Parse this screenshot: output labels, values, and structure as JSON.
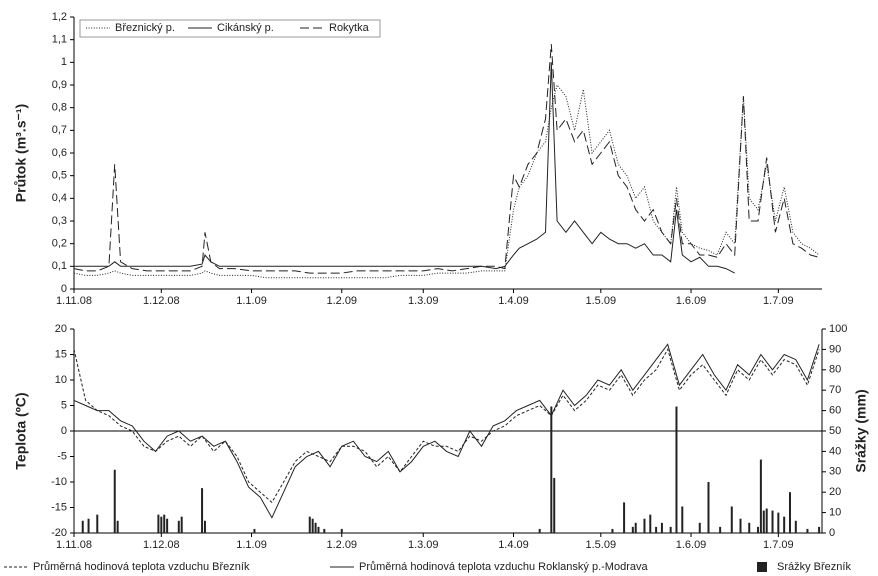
{
  "chart_data": [
    {
      "type": "line",
      "y_label": "Průtok (m³.s⁻¹)",
      "legend": "top-left",
      "xlim": [
        0,
        257
      ],
      "xticks": [
        {
          "value": 0,
          "label": "1.11.08"
        },
        {
          "value": 30,
          "label": "1.12.08"
        },
        {
          "value": 61,
          "label": "1.1.09"
        },
        {
          "value": 92,
          "label": "1.2.09"
        },
        {
          "value": 120,
          "label": "1.3.09"
        },
        {
          "value": 151,
          "label": "1.4.09"
        },
        {
          "value": 181,
          "label": "1.5.09"
        },
        {
          "value": 212,
          "label": "1.6.09"
        },
        {
          "value": 242,
          "label": "1.7.09"
        }
      ],
      "ylim": [
        0,
        1.2
      ],
      "yticks": [
        0,
        {
          "value": 0.1,
          "label": "0,1"
        },
        {
          "value": 0.2,
          "label": "0,2"
        },
        {
          "value": 0.3,
          "label": "0,3"
        },
        {
          "value": 0.4,
          "label": "0,4"
        },
        {
          "value": 0.5,
          "label": "0,5"
        },
        {
          "value": 0.6,
          "label": "0,6"
        },
        {
          "value": 0.7,
          "label": "0,7"
        },
        {
          "value": 0.8,
          "label": "0,8"
        },
        {
          "value": 0.9,
          "label": "0,9"
        },
        1,
        {
          "value": 1.1,
          "label": "1,1"
        },
        {
          "value": 1.2,
          "label": "1,2"
        }
      ],
      "x": [
        0,
        4,
        8,
        12,
        14,
        16,
        20,
        25,
        30,
        35,
        40,
        44,
        45,
        47,
        50,
        55,
        61,
        66,
        71,
        76,
        81,
        86,
        92,
        97,
        102,
        107,
        112,
        117,
        120,
        125,
        130,
        135,
        140,
        145,
        148,
        151,
        153,
        156,
        159,
        162,
        164,
        166,
        169,
        172,
        175,
        178,
        181,
        184,
        187,
        190,
        193,
        196,
        199,
        202,
        205,
        207,
        209,
        212,
        215,
        218,
        221,
        224,
        227,
        230,
        232,
        235,
        238,
        241,
        244,
        247,
        250,
        253,
        256
      ],
      "series": [
        {
          "name": "Březnický p.",
          "color": "#222222",
          "dash": "dotted",
          "values": [
            0.07,
            0.06,
            0.06,
            0.07,
            0.08,
            0.07,
            0.06,
            0.06,
            0.06,
            0.06,
            0.06,
            0.07,
            0.08,
            0.07,
            0.06,
            0.06,
            0.06,
            0.05,
            0.05,
            0.05,
            0.05,
            0.05,
            0.05,
            0.05,
            0.05,
            0.05,
            0.06,
            0.06,
            0.06,
            0.07,
            0.07,
            0.07,
            0.08,
            0.08,
            0.08,
            0.35,
            0.45,
            0.5,
            0.6,
            0.65,
            0.8,
            0.9,
            0.85,
            0.7,
            0.88,
            0.6,
            0.65,
            0.7,
            0.55,
            0.5,
            0.4,
            0.45,
            0.3,
            0.25,
            0.2,
            0.45,
            0.25,
            0.2,
            0.18,
            0.17,
            0.15,
            0.25,
            0.2,
            0.85,
            0.4,
            0.35,
            0.55,
            0.3,
            0.45,
            0.25,
            0.2,
            0.18,
            0.15
          ]
        },
        {
          "name": "Cikánský p.",
          "color": "#222222",
          "dash": "solid",
          "values": [
            0.1,
            0.1,
            0.1,
            0.1,
            0.12,
            0.1,
            0.1,
            0.1,
            0.1,
            0.1,
            0.1,
            0.11,
            0.15,
            0.12,
            0.1,
            0.1,
            0.1,
            0.1,
            0.1,
            0.1,
            0.1,
            0.1,
            0.1,
            0.1,
            0.1,
            0.1,
            0.1,
            0.1,
            0.1,
            0.1,
            0.1,
            0.1,
            0.1,
            0.09,
            0.1,
            0.15,
            0.18,
            0.2,
            0.22,
            0.25,
            1.0,
            0.3,
            0.25,
            0.3,
            0.25,
            0.2,
            0.25,
            0.22,
            0.2,
            0.2,
            0.18,
            0.2,
            0.15,
            0.15,
            0.12,
            0.35,
            0.15,
            0.12,
            0.14,
            0.1,
            0.1,
            0.09,
            0.07,
            null,
            null,
            null,
            null,
            null,
            null,
            null,
            null,
            null,
            null
          ]
        },
        {
          "name": "Rokytka",
          "color": "#222222",
          "dash": "dashed",
          "values": [
            0.09,
            0.08,
            0.08,
            0.1,
            0.55,
            0.12,
            0.09,
            0.08,
            0.08,
            0.08,
            0.08,
            0.1,
            0.25,
            0.12,
            0.09,
            0.09,
            0.08,
            0.08,
            0.08,
            0.08,
            0.07,
            0.07,
            0.07,
            0.08,
            0.08,
            0.08,
            0.08,
            0.08,
            0.08,
            0.09,
            0.08,
            0.09,
            0.1,
            0.1,
            0.09,
            0.5,
            0.45,
            0.55,
            0.6,
            0.75,
            1.08,
            0.7,
            0.75,
            0.65,
            0.7,
            0.55,
            0.6,
            0.65,
            0.5,
            0.45,
            0.35,
            0.3,
            0.35,
            0.25,
            0.2,
            0.4,
            0.2,
            0.2,
            0.15,
            0.15,
            0.14,
            0.2,
            0.15,
            0.85,
            0.3,
            0.3,
            0.58,
            0.25,
            0.4,
            0.2,
            0.18,
            0.15,
            0.14
          ]
        }
      ]
    },
    {
      "type": "line",
      "y_label": "Teplota (ºC)",
      "y2_label": "Srážky (mm)",
      "legend": "bottom",
      "zero_line": true,
      "xlim": [
        0,
        257
      ],
      "xticks": [
        {
          "value": 0,
          "label": "1.11.08"
        },
        {
          "value": 30,
          "label": "1.12.08"
        },
        {
          "value": 61,
          "label": "1.1.09"
        },
        {
          "value": 92,
          "label": "1.2.09"
        },
        {
          "value": 120,
          "label": "1.3.09"
        },
        {
          "value": 151,
          "label": "1.4.09"
        },
        {
          "value": 181,
          "label": "1.5.09"
        },
        {
          "value": 212,
          "label": "1.6.09"
        },
        {
          "value": 242,
          "label": "1.7.09"
        }
      ],
      "ylim": [
        -20,
        20
      ],
      "yticks": [
        -20,
        -15,
        -10,
        -5,
        0,
        5,
        10,
        15,
        20
      ],
      "y2lim": [
        0,
        100
      ],
      "y2ticks": [
        0,
        10,
        20,
        30,
        40,
        50,
        60,
        70,
        80,
        90,
        100
      ],
      "x": [
        0,
        4,
        8,
        12,
        16,
        20,
        24,
        28,
        32,
        36,
        40,
        44,
        48,
        52,
        56,
        60,
        64,
        68,
        72,
        76,
        80,
        84,
        88,
        92,
        96,
        100,
        104,
        108,
        112,
        116,
        120,
        124,
        128,
        132,
        136,
        140,
        144,
        148,
        152,
        156,
        160,
        164,
        168,
        172,
        176,
        180,
        184,
        188,
        192,
        196,
        200,
        204,
        208,
        212,
        216,
        220,
        224,
        228,
        232,
        236,
        240,
        244,
        248,
        252,
        256
      ],
      "series": [
        {
          "name": "Průměrná hodinová teplota vzduchu Březník",
          "color": "#222222",
          "dash": "short-dashed",
          "values": [
            16,
            6,
            4,
            3,
            1,
            0,
            -3,
            -4,
            -2,
            -1,
            -3,
            -1,
            -4,
            -2,
            -5,
            -10,
            -12,
            -14,
            -10,
            -6,
            -4,
            -5,
            -6,
            -3,
            -3,
            -4,
            -7,
            -5,
            -8,
            -5,
            -2,
            -3,
            -3,
            -4,
            -1,
            -2,
            0,
            1,
            3,
            4,
            5,
            3,
            7,
            4,
            6,
            9,
            8,
            11,
            7,
            10,
            12,
            16,
            8,
            11,
            13,
            10,
            7,
            12,
            10,
            14,
            11,
            14,
            13,
            9,
            16
          ]
        },
        {
          "name": "Průměrná hodinová teplota vzduchu Roklanský p.-Modrava",
          "color": "#222222",
          "dash": "solid",
          "values": [
            6,
            5,
            4,
            4,
            2,
            1,
            -2,
            -4,
            -1,
            0,
            -2,
            -1,
            -3,
            -2,
            -6,
            -11,
            -13,
            -17,
            -12,
            -7,
            -5,
            -4,
            -7,
            -3,
            -2,
            -5,
            -6,
            -4,
            -8,
            -6,
            -3,
            -2,
            -4,
            -5,
            0,
            -3,
            1,
            2,
            4,
            5,
            6,
            3,
            8,
            5,
            7,
            10,
            9,
            12,
            8,
            11,
            14,
            17,
            9,
            12,
            15,
            11,
            8,
            13,
            11,
            15,
            12,
            15,
            14,
            10,
            17
          ]
        },
        {
          "name": "Srážky Březník",
          "color": "#222222",
          "type": "bar",
          "axis": "y2",
          "x": [
            3,
            5,
            8,
            14,
            15,
            29,
            30,
            31,
            32,
            36,
            37,
            44,
            45,
            62,
            81,
            82,
            83,
            84,
            86,
            92,
            160,
            164,
            165,
            185,
            189,
            192,
            193,
            196,
            198,
            200,
            202,
            205,
            207,
            209,
            215,
            218,
            222,
            226,
            229,
            232,
            235,
            236,
            237,
            238,
            240,
            242,
            244,
            246,
            248,
            252,
            256
          ],
          "values": [
            6,
            7,
            9,
            31,
            6,
            9,
            8,
            9,
            7,
            6,
            8,
            22,
            6,
            2,
            8,
            7,
            5,
            3,
            2,
            2,
            2,
            62,
            27,
            2,
            15,
            3,
            5,
            7,
            9,
            3,
            5,
            3,
            62,
            13,
            5,
            25,
            3,
            13,
            7,
            5,
            3,
            36,
            11,
            12,
            11,
            10,
            8,
            20,
            6,
            2,
            3
          ]
        }
      ]
    }
  ]
}
